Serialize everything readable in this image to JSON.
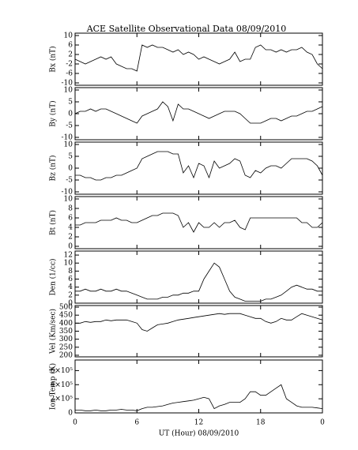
{
  "chart_data": [
    {
      "type": "line",
      "title": "ACE Satellite Observational Data   08/09/2010",
      "ylabel": "Bx (nT)",
      "color": "#000000",
      "x": [
        0,
        0.5,
        1,
        1.5,
        2,
        2.5,
        3,
        3.5,
        4,
        4.5,
        5,
        5.5,
        6,
        6.5,
        7,
        7.5,
        8,
        8.5,
        9,
        9.5,
        10,
        10.5,
        11,
        11.5,
        12,
        12.5,
        13,
        13.5,
        14,
        14.5,
        15,
        15.5,
        16,
        16.5,
        17,
        17.5,
        18,
        18.5,
        19,
        19.5,
        20,
        20.5,
        21,
        21.5,
        22,
        22.5,
        23,
        23.5,
        24
      ],
      "values": [
        0,
        -1,
        -2,
        -1,
        0,
        1,
        0,
        1,
        -2,
        -3,
        -4,
        -4,
        -5,
        6,
        5,
        6,
        5,
        5,
        4,
        3,
        4,
        2,
        3,
        2,
        0,
        1,
        0,
        -1,
        -2,
        -1,
        0,
        3,
        -1,
        0,
        0,
        5,
        6,
        4,
        4,
        3,
        4,
        3,
        4,
        4,
        5,
        3,
        2,
        -2,
        -4
      ],
      "xlim": [
        0,
        24
      ],
      "ylim": [
        -11,
        11
      ],
      "yticks": [
        -10,
        -6,
        -2,
        2,
        6,
        10
      ]
    },
    {
      "type": "line",
      "ylabel": "By (nT)",
      "color": "#000000",
      "x": [
        0,
        0.5,
        1,
        1.5,
        2,
        2.5,
        3,
        3.5,
        4,
        4.5,
        5,
        5.5,
        6,
        6.5,
        7,
        7.5,
        8,
        8.5,
        9,
        9.5,
        10,
        10.5,
        11,
        11.5,
        12,
        12.5,
        13,
        13.5,
        14,
        14.5,
        15,
        15.5,
        16,
        16.5,
        17,
        17.5,
        18,
        18.5,
        19,
        19.5,
        20,
        20.5,
        21,
        21.5,
        22,
        22.5,
        23,
        23.5,
        24
      ],
      "values": [
        0,
        1,
        1,
        2,
        1,
        2,
        2,
        1,
        0,
        -1,
        -2,
        -3,
        -4,
        -1,
        0,
        1,
        2,
        5,
        3,
        -3,
        4,
        2,
        2,
        1,
        0,
        -1,
        -2,
        -1,
        0,
        1,
        1,
        1,
        0,
        -2,
        -4,
        -4,
        -4,
        -3,
        -2,
        -2,
        -3,
        -2,
        -1,
        -1,
        0,
        1,
        1,
        2,
        3
      ],
      "xlim": [
        0,
        24
      ],
      "ylim": [
        -11,
        11
      ],
      "yticks": [
        -10,
        -5,
        0,
        5,
        10
      ]
    },
    {
      "type": "line",
      "ylabel": "Bz (nT)",
      "color": "#000000",
      "x": [
        0,
        0.5,
        1,
        1.5,
        2,
        2.5,
        3,
        3.5,
        4,
        4.5,
        5,
        5.5,
        6,
        6.5,
        7,
        7.5,
        8,
        8.5,
        9,
        9.5,
        10,
        10.5,
        11,
        11.5,
        12,
        12.5,
        13,
        13.5,
        14,
        14.5,
        15,
        15.5,
        16,
        16.5,
        17,
        17.5,
        18,
        18.5,
        19,
        19.5,
        20,
        20.5,
        21,
        21.5,
        22,
        22.5,
        23,
        23.5,
        24
      ],
      "values": [
        -3,
        -3,
        -4,
        -4,
        -5,
        -5,
        -4,
        -4,
        -3,
        -3,
        -2,
        -1,
        0,
        4,
        5,
        6,
        7,
        7,
        7,
        6,
        6,
        -2,
        1,
        -4,
        2,
        1,
        -4,
        3,
        0,
        1,
        2,
        4,
        3,
        -3,
        -4,
        -1,
        -2,
        0,
        1,
        1,
        0,
        2,
        4,
        4,
        4,
        4,
        3,
        1,
        -3
      ],
      "xlim": [
        0,
        24
      ],
      "ylim": [
        -11,
        11
      ],
      "yticks": [
        -10,
        -5,
        0,
        5,
        10
      ]
    },
    {
      "type": "line",
      "ylabel": "Bt (nT)",
      "color": "#000000",
      "x": [
        0,
        0.5,
        1,
        1.5,
        2,
        2.5,
        3,
        3.5,
        4,
        4.5,
        5,
        5.5,
        6,
        6.5,
        7,
        7.5,
        8,
        8.5,
        9,
        9.5,
        10,
        10.5,
        11,
        11.5,
        12,
        12.5,
        13,
        13.5,
        14,
        14.5,
        15,
        15.5,
        16,
        16.5,
        17,
        17.5,
        18,
        18.5,
        19,
        19.5,
        20,
        20.5,
        21,
        21.5,
        22,
        22.5,
        23,
        23.5,
        24
      ],
      "values": [
        4.5,
        4.5,
        5,
        5,
        5,
        5.5,
        5.5,
        5.5,
        6,
        5.5,
        5.5,
        5,
        5,
        5.5,
        6,
        6.5,
        6.5,
        7,
        7,
        7,
        6.5,
        4,
        5,
        3,
        5,
        4,
        4,
        5,
        4,
        5,
        5,
        5.5,
        4,
        3.5,
        6,
        6,
        6,
        6,
        6,
        6,
        6,
        6,
        6,
        6,
        5,
        5,
        4,
        4,
        5
      ],
      "xlim": [
        0,
        24
      ],
      "ylim": [
        -0.5,
        10.5
      ],
      "yticks": [
        0,
        2,
        4,
        6,
        8,
        10
      ]
    },
    {
      "type": "line",
      "ylabel": "Den (1/cc)",
      "color": "#000000",
      "x": [
        0,
        0.5,
        1,
        1.5,
        2,
        2.5,
        3,
        3.5,
        4,
        4.5,
        5,
        5.5,
        6,
        6.5,
        7,
        7.5,
        8,
        8.5,
        9,
        9.5,
        10,
        10.5,
        11,
        11.5,
        12,
        12.5,
        13,
        13.5,
        14,
        14.5,
        15,
        15.5,
        16,
        16.5,
        17,
        17.5,
        18,
        18.5,
        19,
        19.5,
        20,
        20.5,
        21,
        21.5,
        22,
        22.5,
        23,
        23.5,
        24
      ],
      "values": [
        3,
        3,
        3.5,
        3,
        3,
        3.5,
        3,
        3,
        3.5,
        3,
        3,
        2.5,
        2,
        1.5,
        1,
        1,
        1,
        1.5,
        1.5,
        2,
        2,
        2.5,
        2.5,
        3,
        3,
        6,
        8,
        10,
        9,
        6,
        3,
        1.5,
        1,
        0.5,
        0.5,
        0.5,
        0.5,
        1,
        1,
        1.5,
        2,
        3,
        4,
        4.5,
        4,
        3.5,
        3.5,
        3,
        3
      ],
      "xlim": [
        0,
        24
      ],
      "ylim": [
        0,
        13
      ],
      "yticks": [
        0,
        2,
        4,
        6,
        8,
        10,
        12
      ]
    },
    {
      "type": "line",
      "ylabel": "Vel (Km/sec)",
      "color": "#000000",
      "x": [
        0,
        0.5,
        1,
        1.5,
        2,
        2.5,
        3,
        3.5,
        4,
        4.5,
        5,
        5.5,
        6,
        6.5,
        7,
        7.5,
        8,
        8.5,
        9,
        9.5,
        10,
        10.5,
        11,
        11.5,
        12,
        12.5,
        13,
        13.5,
        14,
        14.5,
        15,
        15.5,
        16,
        16.5,
        17,
        17.5,
        18,
        18.5,
        19,
        19.5,
        20,
        20.5,
        21,
        21.5,
        22,
        22.5,
        23,
        23.5,
        24
      ],
      "values": [
        400,
        400,
        410,
        405,
        410,
        410,
        420,
        415,
        420,
        420,
        420,
        410,
        400,
        360,
        350,
        370,
        390,
        395,
        400,
        410,
        420,
        425,
        430,
        435,
        440,
        445,
        450,
        455,
        460,
        455,
        460,
        460,
        460,
        450,
        440,
        430,
        430,
        410,
        400,
        410,
        430,
        420,
        420,
        440,
        460,
        450,
        440,
        430,
        420
      ],
      "xlim": [
        0,
        24
      ],
      "ylim": [
        190,
        510
      ],
      "yticks": [
        200,
        250,
        300,
        350,
        400,
        450,
        500
      ]
    },
    {
      "type": "line",
      "ylabel": "Ion Temp (K)",
      "xlabel": "UT (Hour)  08/09/2010",
      "color": "#000000",
      "x": [
        0,
        0.5,
        1,
        1.5,
        2,
        2.5,
        3,
        3.5,
        4,
        4.5,
        5,
        5.5,
        6,
        6.5,
        7,
        7.5,
        8,
        8.5,
        9,
        9.5,
        10,
        10.5,
        11,
        11.5,
        12,
        12.5,
        13,
        13.5,
        14,
        14.5,
        15,
        15.5,
        16,
        16.5,
        17,
        17.5,
        18,
        18.5,
        19,
        19.5,
        20,
        20.5,
        21,
        21.5,
        22,
        22.5,
        23,
        23.5,
        24
      ],
      "values": [
        40000,
        40000,
        30000,
        30000,
        40000,
        30000,
        30000,
        40000,
        40000,
        50000,
        40000,
        40000,
        30000,
        60000,
        80000,
        80000,
        90000,
        100000,
        120000,
        140000,
        150000,
        160000,
        170000,
        180000,
        200000,
        220000,
        200000,
        60000,
        100000,
        120000,
        150000,
        150000,
        150000,
        200000,
        300000,
        300000,
        250000,
        250000,
        300000,
        350000,
        400000,
        200000,
        150000,
        100000,
        80000,
        80000,
        80000,
        70000,
        60000
      ],
      "xlim": [
        0,
        24
      ],
      "ylim": [
        0,
        750000
      ],
      "yticks": [
        0,
        {
          "value": 200000,
          "label": "2×10⁵"
        },
        {
          "value": 400000,
          "label": "4×10⁵"
        },
        {
          "value": 600000,
          "label": "6×10⁵"
        }
      ],
      "xticks": [
        0,
        6,
        12,
        18,
        {
          "value": 24,
          "label": "0"
        }
      ]
    }
  ]
}
